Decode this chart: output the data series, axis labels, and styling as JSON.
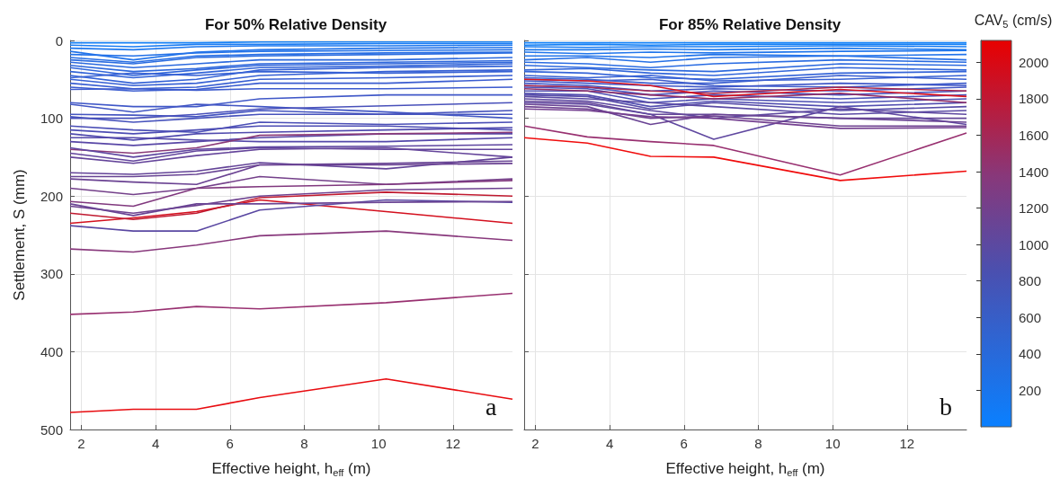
{
  "chart_data": [
    {
      "type": "line",
      "title": "For 50% Relative Density",
      "xlabel": "Effective height, h$_{eff}$ (m)",
      "ylabel": "Settlement, S (mm)",
      "x": [
        1.7,
        3.4,
        5.1,
        6.8,
        10.2,
        13.6
      ],
      "xlim": [
        1.7,
        13.6
      ],
      "xticks": [
        2,
        4,
        6,
        8,
        10,
        12
      ],
      "ylim": [
        500,
        0
      ],
      "yticks": [
        0,
        100,
        200,
        300,
        400,
        500
      ],
      "grid": true,
      "marker": "none",
      "annotations": [
        "a"
      ],
      "series": [
        {
          "color": "#1480f5",
          "values": [
            3,
            3,
            3,
            2,
            2,
            2
          ]
        },
        {
          "color": "#1a7cf2",
          "values": [
            6,
            8,
            5,
            5,
            4,
            4
          ]
        },
        {
          "color": "#1e78ee",
          "values": [
            10,
            12,
            8,
            7,
            7,
            6
          ]
        },
        {
          "color": "#2274ea",
          "values": [
            14,
            25,
            15,
            12,
            10,
            9
          ]
        },
        {
          "color": "#2472e8",
          "values": [
            18,
            20,
            16,
            14,
            13,
            12
          ]
        },
        {
          "color": "#276ee4",
          "values": [
            22,
            28,
            20,
            18,
            16,
            15
          ]
        },
        {
          "color": "#2a6ce0",
          "values": [
            25,
            30,
            22,
            20,
            18,
            16
          ]
        },
        {
          "color": "#2c6ade",
          "values": [
            28,
            35,
            30,
            25,
            25,
            22
          ]
        },
        {
          "color": "#2e68dc",
          "values": [
            32,
            40,
            36,
            30,
            28,
            26
          ]
        },
        {
          "color": "#3066da",
          "values": [
            35,
            45,
            38,
            32,
            30,
            28
          ]
        },
        {
          "color": "#3264d8",
          "values": [
            40,
            48,
            42,
            35,
            33,
            30
          ]
        },
        {
          "color": "#3462d6",
          "values": [
            45,
            55,
            50,
            38,
            35,
            33
          ]
        },
        {
          "color": "#3660d4",
          "values": [
            50,
            58,
            55,
            45,
            40,
            38
          ]
        },
        {
          "color": "#385ed2",
          "values": [
            55,
            62,
            60,
            50,
            48,
            45
          ]
        },
        {
          "color": "#3a5cd0",
          "values": [
            60,
            65,
            63,
            55,
            55,
            50
          ]
        },
        {
          "color": "#3c5ace",
          "values": [
            63,
            62,
            64,
            62,
            62,
            60
          ]
        },
        {
          "color": "#3560d4",
          "values": [
            48,
            42,
            45,
            40,
            42,
            40
          ]
        },
        {
          "color": "#4058c8",
          "values": [
            80,
            85,
            85,
            75,
            70,
            70
          ]
        },
        {
          "color": "#4256c4",
          "values": [
            82,
            92,
            82,
            85,
            92,
            100
          ]
        },
        {
          "color": "#4454c0",
          "values": [
            95,
            96,
            98,
            90,
            95,
            95
          ]
        },
        {
          "color": "#4652bc",
          "values": [
            98,
            105,
            100,
            95,
            95,
            90
          ]
        },
        {
          "color": "#4850ba",
          "values": [
            100,
            100,
            95,
            88,
            84,
            80
          ]
        },
        {
          "color": "#4a4eb6",
          "values": [
            110,
            115,
            118,
            105,
            108,
            105
          ]
        },
        {
          "color": "#4c4cb4",
          "values": [
            115,
            120,
            115,
            110,
            110,
            115
          ]
        },
        {
          "color": "#504aae",
          "values": [
            120,
            128,
            120,
            118,
            115,
            112
          ]
        },
        {
          "color": "#5448aa",
          "values": [
            125,
            125,
            128,
            130,
            130,
            125
          ]
        },
        {
          "color": "#5846a6",
          "values": [
            130,
            135,
            130,
            125,
            120,
            120
          ]
        },
        {
          "color": "#8a3a78",
          "values": [
            140,
            145,
            138,
            122,
            120,
            118
          ]
        },
        {
          "color": "#5e46a0",
          "values": [
            138,
            150,
            140,
            137,
            136,
            134
          ]
        },
        {
          "color": "#62449c",
          "values": [
            145,
            155,
            142,
            138,
            140,
            140
          ]
        },
        {
          "color": "#64449a",
          "values": [
            150,
            158,
            148,
            140,
            138,
            150
          ]
        },
        {
          "color": "#644498",
          "values": [
            170,
            172,
            168,
            157,
            165,
            150
          ]
        },
        {
          "color": "#684494",
          "values": [
            175,
            175,
            172,
            160,
            158,
            155
          ]
        },
        {
          "color": "#6a4292",
          "values": [
            178,
            182,
            185,
            160,
            160,
            158
          ]
        },
        {
          "color": "#74408a",
          "values": [
            190,
            198,
            190,
            175,
            185,
            178
          ]
        },
        {
          "color": "#80387e",
          "values": [
            207,
            213,
            190,
            188,
            185,
            180
          ]
        },
        {
          "color": "#6e4290",
          "values": [
            213,
            222,
            212,
            200,
            192,
            190
          ]
        },
        {
          "color": "#d4101e",
          "values": [
            235,
            228,
            220,
            205,
            220,
            235
          ]
        },
        {
          "color": "#c01a30",
          "values": [
            222,
            230,
            222,
            202,
            195,
            200
          ]
        },
        {
          "color": "#5a48a2",
          "values": [
            238,
            245,
            245,
            218,
            205,
            208
          ]
        },
        {
          "color": "#6a4494",
          "values": [
            210,
            225,
            210,
            210,
            208,
            207
          ]
        },
        {
          "color": "#88387c",
          "values": [
            268,
            272,
            263,
            251,
            245,
            257
          ]
        },
        {
          "color": "#983070",
          "values": [
            352,
            349,
            342,
            345,
            337,
            325
          ]
        },
        {
          "color": "#e80c10",
          "values": [
            478,
            474,
            474,
            459,
            435,
            461
          ]
        }
      ]
    },
    {
      "type": "line",
      "title": "For 85% Relative Density",
      "xlabel": "Effective height, h$_{eff}$ (m)",
      "x": [
        1.7,
        3.4,
        5.1,
        6.8,
        10.2,
        13.6
      ],
      "xlim": [
        1.7,
        13.6
      ],
      "xticks": [
        2,
        4,
        6,
        8,
        10,
        12
      ],
      "ylim": [
        500,
        0
      ],
      "yticks": [
        0,
        100,
        200,
        300,
        400,
        500
      ],
      "tick_labels": "x",
      "grid": true,
      "marker": "none",
      "annotations": [
        "b"
      ],
      "clabel": "CAV$_{5}$ (cm/s)",
      "clim": [
        0,
        2120
      ],
      "cticks": [
        200,
        400,
        600,
        800,
        1000,
        1200,
        1400,
        1600,
        1800,
        2000
      ],
      "series": [
        {
          "color": "#1080f8",
          "values": [
            3,
            3,
            3,
            3,
            3,
            3
          ]
        },
        {
          "color": "#1480f5",
          "values": [
            6,
            5,
            6,
            5,
            5,
            5
          ]
        },
        {
          "color": "#187cf2",
          "values": [
            8,
            9,
            8,
            8,
            7,
            8
          ]
        },
        {
          "color": "#1c7aef",
          "values": [
            12,
            12,
            11,
            12,
            10,
            12
          ]
        },
        {
          "color": "#2076ec",
          "values": [
            15,
            17,
            15,
            16,
            14,
            13
          ]
        },
        {
          "color": "#2274ea",
          "values": [
            20,
            20,
            22,
            18,
            20,
            18
          ]
        },
        {
          "color": "#2670e6",
          "values": [
            25,
            22,
            28,
            22,
            20,
            25
          ]
        },
        {
          "color": "#2a6ce2",
          "values": [
            28,
            30,
            35,
            30,
            25,
            28
          ]
        },
        {
          "color": "#2e6ade",
          "values": [
            32,
            35,
            38,
            40,
            30,
            32
          ]
        },
        {
          "color": "#3266da",
          "values": [
            38,
            36,
            42,
            45,
            35,
            38
          ]
        },
        {
          "color": "#3464d8",
          "values": [
            40,
            42,
            48,
            50,
            42,
            40
          ]
        },
        {
          "color": "#3660d4",
          "values": [
            45,
            48,
            45,
            52,
            50,
            45
          ]
        },
        {
          "color": "#3a5ecf",
          "values": [
            48,
            50,
            55,
            55,
            45,
            50
          ]
        },
        {
          "color": "#3e5ccb",
          "values": [
            50,
            52,
            50,
            58,
            60,
            55
          ]
        },
        {
          "color": "#4058c8",
          "values": [
            52,
            55,
            58,
            60,
            55,
            58
          ]
        },
        {
          "color": "#4256c4",
          "values": [
            55,
            58,
            65,
            62,
            65,
            60
          ]
        },
        {
          "color": "#4654c0",
          "values": [
            58,
            60,
            70,
            65,
            70,
            65
          ]
        },
        {
          "color": "#4a52ba",
          "values": [
            60,
            62,
            75,
            70,
            75,
            70
          ]
        },
        {
          "color": "#4e50b4",
          "values": [
            65,
            65,
            80,
            75,
            80,
            75
          ]
        },
        {
          "color": "#524eb0",
          "values": [
            68,
            70,
            85,
            78,
            85,
            80
          ]
        },
        {
          "color": "#564ca8",
          "values": [
            70,
            72,
            88,
            80,
            90,
            85
          ]
        },
        {
          "color": "#5a4aa4",
          "values": [
            72,
            75,
            80,
            85,
            95,
            90
          ]
        },
        {
          "color": "#5e48a0",
          "values": [
            75,
            78,
            90,
            100,
            88,
            95
          ]
        },
        {
          "color": "#644698",
          "values": [
            78,
            80,
            95,
            95,
            100,
            100
          ]
        },
        {
          "color": "#6048a0",
          "values": [
            80,
            82,
            95,
            127,
            85,
            108
          ]
        },
        {
          "color": "#6a4494",
          "values": [
            82,
            85,
            108,
            95,
            100,
            105
          ]
        },
        {
          "color": "#6e4290",
          "values": [
            85,
            88,
            100,
            97,
            110,
            110
          ]
        },
        {
          "color": "#744090",
          "values": [
            88,
            90,
            98,
            100,
            113,
            112
          ]
        },
        {
          "color": "#a82a50",
          "values": [
            58,
            60,
            65,
            68,
            60,
            65
          ]
        },
        {
          "color": "#902f68",
          "values": [
            62,
            65,
            70,
            75,
            68,
            80
          ]
        },
        {
          "color": "#d81420",
          "values": [
            50,
            52,
            58,
            72,
            63,
            72
          ]
        },
        {
          "color": "#983070",
          "values": [
            110,
            124,
            130,
            135,
            173,
            119
          ]
        },
        {
          "color": "#f00c0c",
          "values": [
            125,
            132,
            149,
            150,
            180,
            168
          ]
        }
      ]
    }
  ]
}
